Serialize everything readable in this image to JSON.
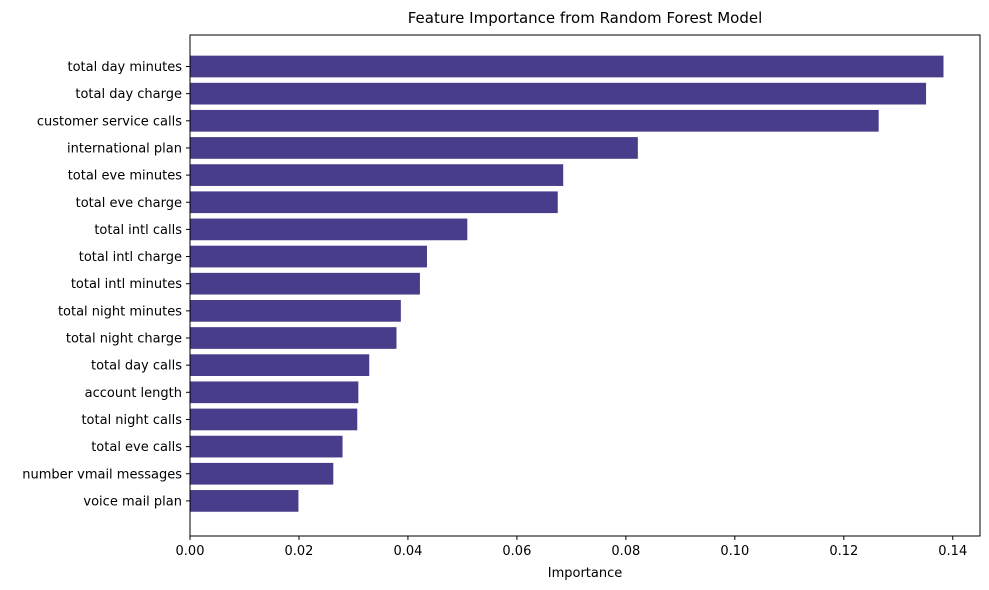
{
  "chart_data": {
    "type": "bar",
    "orientation": "horizontal",
    "title": "Feature Importance from Random Forest Model",
    "xlabel": "Importance",
    "ylabel": "",
    "xlim": [
      0,
      0.145
    ],
    "xticks": [
      0.0,
      0.02,
      0.04,
      0.06,
      0.08,
      0.1,
      0.12,
      0.14
    ],
    "xtick_labels": [
      "0.00",
      "0.02",
      "0.04",
      "0.06",
      "0.08",
      "0.10",
      "0.12",
      "0.14"
    ],
    "grid": false,
    "bar_color": "#483D8B",
    "categories": [
      "total day minutes",
      "total day charge",
      "customer service calls",
      "international plan",
      "total eve minutes",
      "total eve charge",
      "total intl calls",
      "total intl charge",
      "total intl minutes",
      "total night minutes",
      "total night charge",
      "total day calls",
      "account length",
      "total night calls",
      "total eve calls",
      "number vmail messages",
      "voice mail plan"
    ],
    "values": [
      0.1383,
      0.1351,
      0.1264,
      0.0822,
      0.0685,
      0.0675,
      0.0509,
      0.0435,
      0.0422,
      0.0387,
      0.0379,
      0.0329,
      0.0309,
      0.0307,
      0.028,
      0.0263,
      0.0199
    ]
  }
}
